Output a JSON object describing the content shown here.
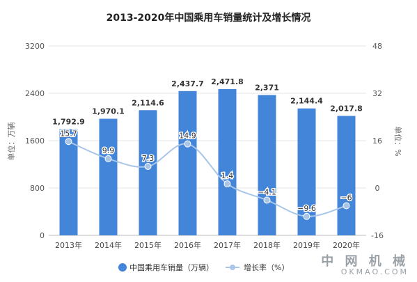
{
  "chart_data": {
    "type": "bar+line",
    "title": "2013-2020年中国乘用车销量统计及增长情况",
    "categories": [
      "2013年",
      "2014年",
      "2015年",
      "2016年",
      "2017年",
      "2018年",
      "2019年",
      "2020年"
    ],
    "series": [
      {
        "name": "中国乘用车销量（万辆）",
        "type": "bar",
        "axis": "left",
        "color": "#4285d9",
        "values": [
          1792.9,
          1970.1,
          2114.6,
          2437.7,
          2471.8,
          2371,
          2144.4,
          2017.8
        ],
        "labels": [
          "1,792.9",
          "1,970.1",
          "2,114.6",
          "2,437.7",
          "2,471.8",
          "2,371",
          "2,144.4",
          "2,017.8"
        ]
      },
      {
        "name": "增长率（%）",
        "type": "line",
        "axis": "right",
        "color": "#a9c6e8",
        "values": [
          15.7,
          9.9,
          7.3,
          14.9,
          1.4,
          -4.1,
          -9.6,
          -6
        ],
        "labels": [
          "15.7",
          "9.9",
          "7.3",
          "14.9",
          "1.4",
          "−4.1",
          "−9.6",
          "−6"
        ]
      }
    ],
    "y_left": {
      "label": "单位：万辆",
      "range": [
        0,
        3200
      ],
      "ticks": [
        "0",
        "800",
        "1600",
        "2400",
        "3200"
      ]
    },
    "y_right": {
      "label": "单位：%",
      "range": [
        -16,
        48
      ],
      "ticks": [
        "-16",
        "0",
        "16",
        "32",
        "48"
      ]
    },
    "grid": true,
    "legend_position": "bottom"
  },
  "watermark": {
    "line1": "中 网 机 械",
    "line2": "OKMAO.COM"
  }
}
